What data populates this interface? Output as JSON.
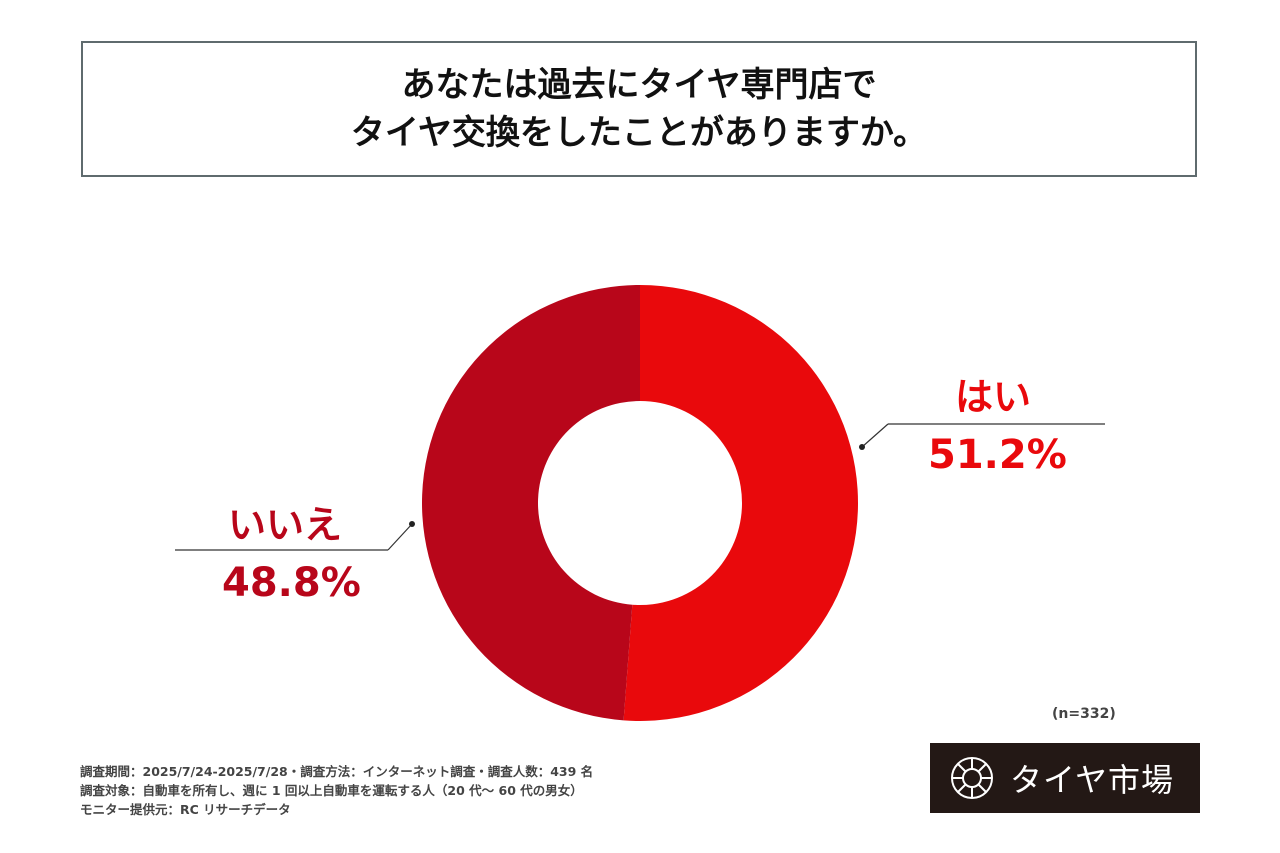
{
  "title": [
    "あなたは過去にタイヤ専門店で",
    "タイヤ交換をしたことがありますか。"
  ],
  "chart_data": {
    "type": "pie",
    "donut": true,
    "slices": [
      {
        "label": "はい",
        "value": 51.2,
        "display": "51.2%",
        "color": "#e9090c"
      },
      {
        "label": "いいえ",
        "value": 48.8,
        "display": "48.8%",
        "color": "#b8061a"
      }
    ],
    "start": "top, clockwise",
    "sample_note": "(n=332)"
  },
  "footer": [
    "調査期間：2025/7/24-2025/7/28・調査方法：インターネット調査・調査人数：439 名",
    "調査対象：自動車を所有し、週に 1 回以上自動車を運転する人（20 代～ 60 代の男女）",
    "モニター提供元：RC リサーチデータ"
  ],
  "logo": {
    "text": "タイヤ市場",
    "icon": "tire-icon"
  }
}
